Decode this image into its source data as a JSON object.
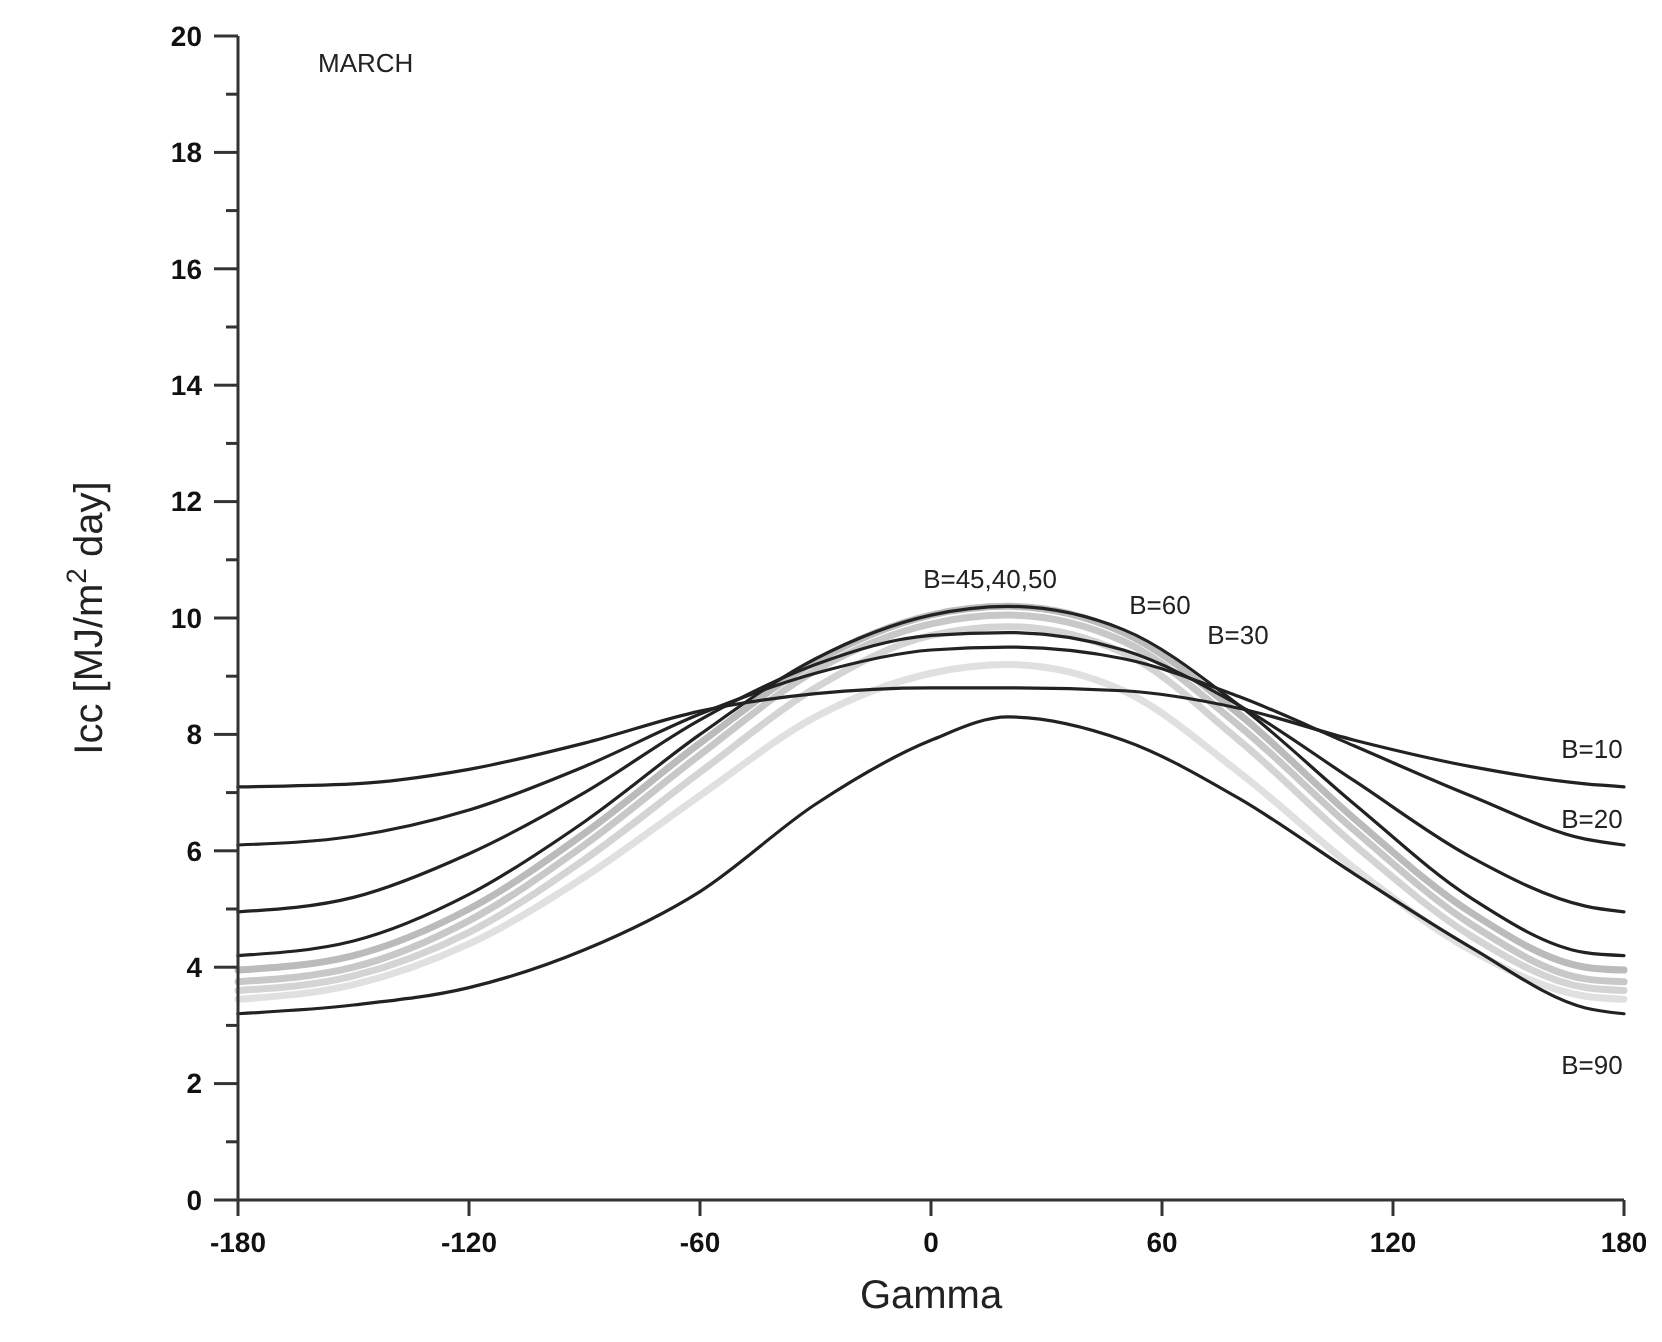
{
  "chart_data": {
    "type": "line",
    "title": "MARCH",
    "xlabel": "Gamma",
    "ylabel": "Icc [MJ/m$^{2}$ day]",
    "x": [
      -180,
      -150,
      -120,
      -90,
      -60,
      -30,
      0,
      20,
      50,
      80,
      110,
      140,
      170,
      180
    ],
    "xlim": [
      -180,
      180
    ],
    "xticks": [
      -180,
      -120,
      -60,
      0,
      60,
      120,
      180
    ],
    "ylim": [
      0,
      20
    ],
    "yticks": [
      0,
      {
        "value": 1,
        "label": null
      },
      2,
      {
        "value": 3,
        "label": null
      },
      4,
      {
        "value": 5,
        "label": null
      },
      6,
      {
        "value": 7,
        "label": null
      },
      8,
      {
        "value": 9,
        "label": null
      },
      10,
      {
        "value": 11,
        "label": null
      },
      12,
      {
        "value": 13,
        "label": null
      },
      14,
      {
        "value": 15,
        "label": null
      },
      16,
      {
        "value": 17,
        "label": null
      },
      18,
      {
        "value": 19,
        "label": null
      },
      20
    ],
    "grid": false,
    "marker": "none",
    "line_style": "solid",
    "series": [
      {
        "color": "#222222",
        "values": [
          7.1,
          7.15,
          7.4,
          7.85,
          8.4,
          8.7,
          8.8,
          8.8,
          8.75,
          8.45,
          7.9,
          7.45,
          7.15,
          7.1
        ]
      },
      {
        "color": "#222222",
        "values": [
          6.1,
          6.25,
          6.7,
          7.45,
          8.35,
          9.05,
          9.45,
          9.5,
          9.3,
          8.65,
          7.8,
          6.95,
          6.2,
          6.1
        ]
      },
      {
        "color": "#222222",
        "values": [
          4.95,
          5.2,
          5.95,
          7.0,
          8.25,
          9.2,
          9.7,
          9.75,
          9.45,
          8.5,
          7.2,
          5.9,
          5.05,
          4.95
        ]
      },
      {
        "color": "#222222",
        "values": [
          4.2,
          4.45,
          5.25,
          6.5,
          8.0,
          9.3,
          10.05,
          10.2,
          9.8,
          8.5,
          6.8,
          5.2,
          4.25,
          4.2
        ]
      },
      {
        "color": "#bbbbbb",
        "values": [
          3.95,
          4.2,
          5.0,
          6.3,
          7.85,
          9.25,
          10.05,
          10.2,
          9.75,
          8.35,
          6.55,
          4.95,
          4.0,
          3.95
        ]
      },
      {
        "color": "#c8c8c8",
        "values": [
          3.75,
          4.0,
          4.8,
          6.1,
          7.65,
          9.1,
          9.9,
          10.05,
          9.6,
          8.15,
          6.35,
          4.75,
          3.8,
          3.75
        ]
      },
      {
        "color": "#d4d4d4",
        "values": [
          3.6,
          3.85,
          4.6,
          5.85,
          7.35,
          8.8,
          9.7,
          9.85,
          9.4,
          7.9,
          6.1,
          4.55,
          3.65,
          3.6
        ]
      },
      {
        "color": "#e0e0e0",
        "values": [
          3.45,
          3.7,
          4.4,
          5.55,
          6.95,
          8.3,
          9.05,
          9.2,
          8.75,
          7.35,
          5.7,
          4.3,
          3.5,
          3.45
        ]
      },
      {
        "color": "#222222",
        "values": [
          3.2,
          3.35,
          3.65,
          4.3,
          5.3,
          6.8,
          7.9,
          8.3,
          7.9,
          6.9,
          5.6,
          4.35,
          3.3,
          3.2
        ]
      }
    ],
    "annotations": [
      "B=45,40,50",
      "B=60",
      "B=30",
      "B=10",
      "B=20",
      "B=90"
    ]
  }
}
